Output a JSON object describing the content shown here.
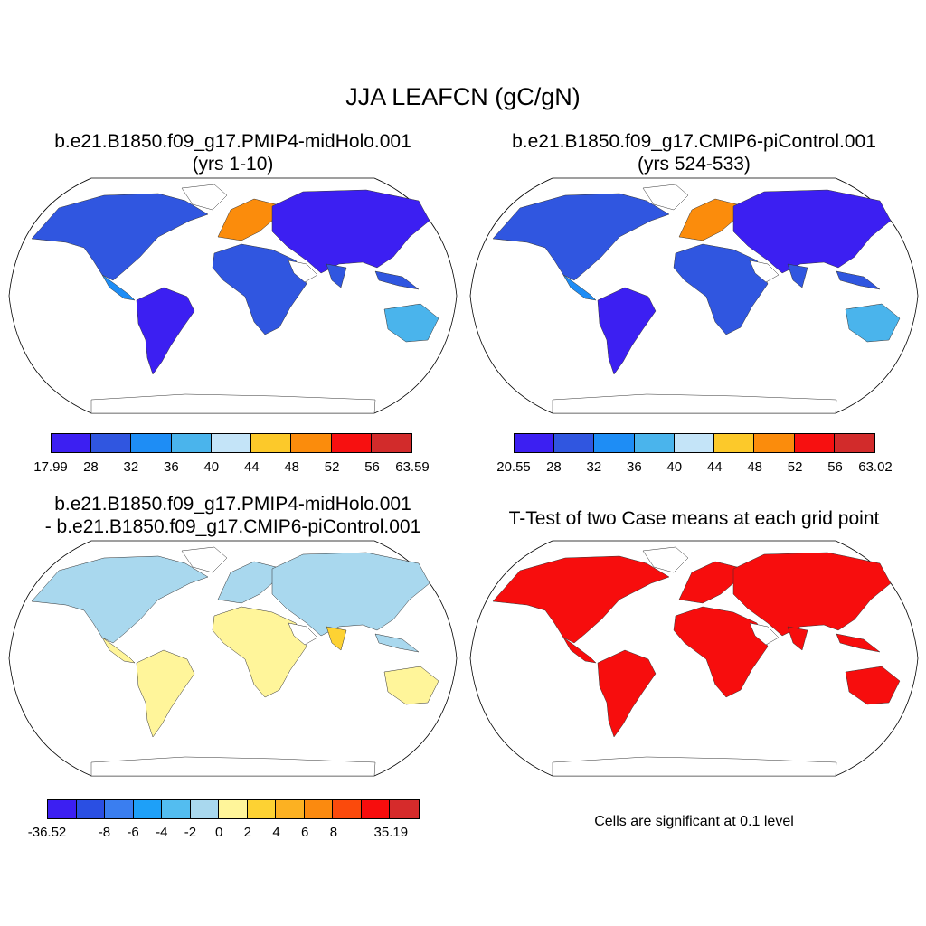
{
  "figure": {
    "title": "JJA LEAFCN (gC/gN)"
  },
  "panels": [
    {
      "title_line1": "b.e21.B1850.f09_g17.PMIP4-midHolo.001",
      "title_line2": "(yrs 1-10)",
      "colorbar": {
        "labels": [
          "17.99",
          "28",
          "32",
          "36",
          "40",
          "44",
          "48",
          "52",
          "56",
          "63.59"
        ],
        "colors": [
          "#3c1ff2",
          "#3056e0",
          "#1e8df5",
          "#4ab4ec",
          "#c4e4f8",
          "#fcc92a",
          "#fb8c0c",
          "#f71010",
          "#d22b2b"
        ]
      }
    },
    {
      "title_line1": "b.e21.B1850.f09_g17.CMIP6-piControl.001",
      "title_line2": "(yrs 524-533)",
      "colorbar": {
        "labels": [
          "20.55",
          "28",
          "32",
          "36",
          "40",
          "44",
          "48",
          "52",
          "56",
          "63.02"
        ],
        "colors": [
          "#3c1ff2",
          "#3056e0",
          "#1e8df5",
          "#4ab4ec",
          "#c4e4f8",
          "#fcc92a",
          "#fb8c0c",
          "#f71010",
          "#d22b2b"
        ]
      }
    },
    {
      "title_line1": "b.e21.B1850.f09_g17.PMIP4-midHolo.001",
      "title_line2": "- b.e21.B1850.f09_g17.CMIP6-piControl.001",
      "colorbar": {
        "labels": [
          "-36.52",
          "",
          "-8",
          "-6",
          "-4",
          "-2",
          "0",
          "2",
          "4",
          "6",
          "8",
          "",
          "35.19"
        ],
        "colors": [
          "#3c1ff2",
          "#2a4fe3",
          "#3a7ef0",
          "#1ea0f8",
          "#53bdf0",
          "#a9d8ee",
          "#fff59a",
          "#fdd233",
          "#fcb122",
          "#fb8a0f",
          "#fb4a0c",
          "#f70d0d",
          "#d62b2b"
        ]
      }
    },
    {
      "title": "T-Test of two Case means at each grid point",
      "note": "Cells are significant at 0.1 level",
      "significance_color": "#f70d0d"
    }
  ]
}
